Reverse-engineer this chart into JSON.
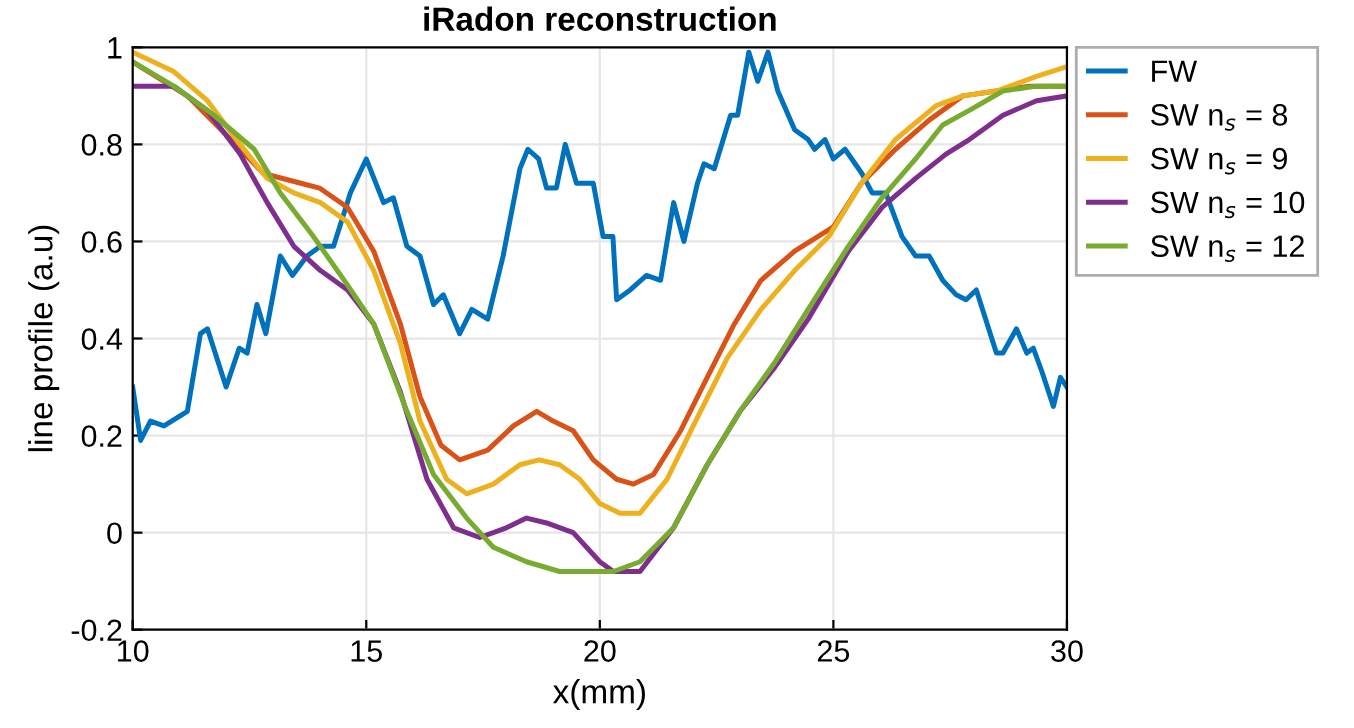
{
  "chart_data": {
    "type": "line",
    "title": "iRadon reconstruction",
    "xlabel": "x(mm)",
    "ylabel": "line profile (a.u)",
    "xlim": [
      10,
      30
    ],
    "xticks": [
      10,
      15,
      20,
      25,
      30
    ],
    "ylim": [
      -0.2,
      1
    ],
    "yticks": [
      -0.2,
      0,
      0.2,
      0.4,
      0.6,
      0.8,
      1
    ],
    "grid": true,
    "legend": "top right",
    "marker": "none",
    "line_style": "solid",
    "series": [
      {
        "name": "FW",
        "color": "#0072bd",
        "x": [
          10,
          10.17,
          10.38,
          10.67,
          11.17,
          11.45,
          11.6,
          12.0,
          12.28,
          12.45,
          12.66,
          12.85,
          13.16,
          13.42,
          13.73,
          14.02,
          14.3,
          14.66,
          15.0,
          15.37,
          15.58,
          15.87,
          16.15,
          16.44,
          16.65,
          17.0,
          17.26,
          17.6,
          17.93,
          18.29,
          18.46,
          18.69,
          18.86,
          19.07,
          19.26,
          19.5,
          19.86,
          20.07,
          20.28,
          20.36,
          20.65,
          21.0,
          21.3,
          21.58,
          21.8,
          22.09,
          22.23,
          22.45,
          22.8,
          22.95,
          23.19,
          23.38,
          23.6,
          23.81,
          24.17,
          24.46,
          24.6,
          24.82,
          25.0,
          25.25,
          25.61,
          25.83,
          26.12,
          26.47,
          26.76,
          27.05,
          27.34,
          27.63,
          27.84,
          28.06,
          28.49,
          28.63,
          28.92,
          29.14,
          29.28,
          29.47,
          29.71,
          29.86,
          30.0
        ],
        "values": [
          0.3,
          0.19,
          0.23,
          0.22,
          0.25,
          0.41,
          0.42,
          0.3,
          0.38,
          0.37,
          0.47,
          0.41,
          0.57,
          0.53,
          0.57,
          0.59,
          0.59,
          0.7,
          0.77,
          0.68,
          0.69,
          0.59,
          0.57,
          0.47,
          0.49,
          0.41,
          0.46,
          0.44,
          0.57,
          0.75,
          0.79,
          0.77,
          0.71,
          0.71,
          0.8,
          0.72,
          0.72,
          0.61,
          0.61,
          0.48,
          0.5,
          0.53,
          0.52,
          0.68,
          0.6,
          0.72,
          0.76,
          0.75,
          0.86,
          0.86,
          0.99,
          0.93,
          0.99,
          0.91,
          0.83,
          0.81,
          0.79,
          0.81,
          0.77,
          0.79,
          0.74,
          0.7,
          0.7,
          0.61,
          0.57,
          0.57,
          0.52,
          0.49,
          0.48,
          0.5,
          0.37,
          0.37,
          0.42,
          0.37,
          0.38,
          0.33,
          0.26,
          0.32,
          0.3
        ]
      },
      {
        "name": "SW n$_{s}$ = 8",
        "color": "#d95319",
        "x": [
          10,
          11.17,
          12.0,
          12.8,
          13.6,
          14.0,
          14.6,
          15.16,
          15.73,
          16.15,
          16.6,
          17.0,
          17.6,
          18.15,
          18.65,
          19.0,
          19.43,
          19.86,
          20.36,
          20.72,
          21.15,
          21.73,
          22.3,
          22.88,
          23.45,
          24.17,
          25.0,
          25.6,
          26.33,
          27.05,
          27.77,
          28.49,
          29.2,
          30
        ],
        "values": [
          0.97,
          0.9,
          0.82,
          0.74,
          0.72,
          0.71,
          0.67,
          0.58,
          0.43,
          0.28,
          0.18,
          0.15,
          0.17,
          0.22,
          0.25,
          0.23,
          0.21,
          0.15,
          0.11,
          0.1,
          0.12,
          0.21,
          0.32,
          0.43,
          0.52,
          0.58,
          0.63,
          0.72,
          0.79,
          0.85,
          0.9,
          0.91,
          0.92,
          0.92
        ]
      },
      {
        "name": "SW n$_{s}$ = 9",
        "color": "#edb120",
        "x": [
          10,
          10.88,
          11.6,
          12.3,
          12.88,
          13.45,
          14.02,
          14.6,
          15.16,
          15.73,
          16.15,
          16.72,
          17.15,
          17.72,
          18.29,
          18.7,
          19.14,
          19.57,
          20.0,
          20.43,
          20.86,
          21.44,
          22.0,
          22.73,
          23.45,
          24.17,
          24.9,
          25.6,
          26.33,
          27.2,
          27.77,
          28.49,
          29.35,
          30
        ],
        "values": [
          0.99,
          0.95,
          0.89,
          0.8,
          0.73,
          0.7,
          0.68,
          0.64,
          0.54,
          0.39,
          0.23,
          0.11,
          0.08,
          0.1,
          0.14,
          0.15,
          0.14,
          0.11,
          0.06,
          0.04,
          0.04,
          0.11,
          0.22,
          0.36,
          0.46,
          0.54,
          0.61,
          0.72,
          0.81,
          0.88,
          0.9,
          0.91,
          0.94,
          0.96
        ]
      },
      {
        "name": "SW n$_{s}$ = 10",
        "color": "#7e2f8e",
        "x": [
          10,
          10.88,
          11.6,
          12.3,
          12.88,
          13.45,
          14.02,
          14.6,
          15.16,
          15.73,
          16.3,
          16.87,
          17.43,
          18.0,
          18.43,
          18.86,
          19.43,
          20.0,
          20.29,
          20.86,
          21.58,
          22.3,
          23.0,
          23.74,
          24.46,
          25.32,
          26.04,
          26.76,
          27.41,
          27.91,
          28.63,
          29.35,
          30
        ],
        "values": [
          0.92,
          0.92,
          0.87,
          0.78,
          0.68,
          0.59,
          0.54,
          0.5,
          0.43,
          0.29,
          0.11,
          0.01,
          -0.01,
          0.01,
          0.03,
          0.02,
          0.0,
          -0.06,
          -0.08,
          -0.08,
          0.01,
          0.14,
          0.25,
          0.34,
          0.44,
          0.58,
          0.67,
          0.73,
          0.78,
          0.81,
          0.86,
          0.89,
          0.9
        ]
      },
      {
        "name": "SW n$_{s}$ = 12",
        "color": "#77ac30",
        "x": [
          10,
          10.88,
          11.74,
          12.6,
          13.16,
          13.87,
          14.6,
          15.16,
          15.87,
          16.44,
          17.15,
          17.72,
          18.43,
          19.14,
          20.0,
          20.29,
          20.86,
          21.58,
          22.3,
          23.0,
          23.74,
          24.46,
          25.32,
          26.04,
          26.76,
          27.34,
          27.91,
          28.63,
          29.35,
          30
        ],
        "values": [
          0.97,
          0.92,
          0.86,
          0.79,
          0.7,
          0.61,
          0.51,
          0.43,
          0.25,
          0.12,
          0.03,
          -0.03,
          -0.06,
          -0.08,
          -0.08,
          -0.08,
          -0.06,
          0.01,
          0.14,
          0.25,
          0.35,
          0.46,
          0.59,
          0.69,
          0.77,
          0.84,
          0.87,
          0.91,
          0.92,
          0.92
        ]
      }
    ]
  }
}
